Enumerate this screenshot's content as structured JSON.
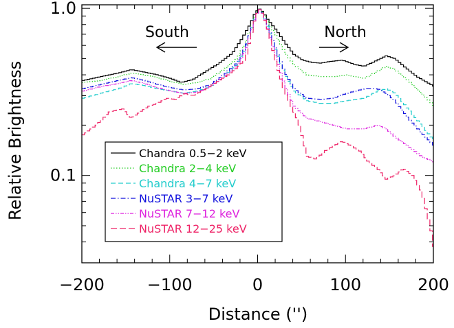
{
  "chart_data": {
    "type": "line",
    "title": "",
    "xlabel": "Distance ('')",
    "ylabel": "Relative Brightness",
    "xlim": [
      -200,
      200
    ],
    "ylim": [
      0.03,
      1.05
    ],
    "yscale": "log",
    "xticks": [
      -200,
      -100,
      0,
      100,
      200
    ],
    "xtick_labels": [
      "−200",
      "−100",
      "0",
      "100",
      "200"
    ],
    "yticks": [
      0.1,
      1.0
    ],
    "ytick_labels": [
      "0.1",
      "1.0"
    ],
    "grid": false,
    "legend_position": "lower-left",
    "annotations": [
      {
        "text": "South",
        "arrow": "left"
      },
      {
        "text": "North",
        "arrow": "right"
      }
    ],
    "series": [
      {
        "name": "Chandra 0.5−2 keV",
        "color": "#000000",
        "style": "solid",
        "x": [
          -200,
          -180,
          -160,
          -145,
          -130,
          -115,
          -100,
          -88,
          -75,
          -60,
          -45,
          -30,
          -20,
          -10,
          -5,
          0,
          5,
          10,
          20,
          30,
          40,
          50,
          60,
          70,
          80,
          95,
          110,
          120,
          135,
          145,
          155,
          165,
          180,
          200
        ],
        "y": [
          0.37,
          0.39,
          0.41,
          0.43,
          0.415,
          0.4,
          0.38,
          0.36,
          0.375,
          0.42,
          0.47,
          0.54,
          0.65,
          0.8,
          0.92,
          1.0,
          0.95,
          0.86,
          0.74,
          0.62,
          0.53,
          0.49,
          0.475,
          0.47,
          0.48,
          0.49,
          0.46,
          0.45,
          0.49,
          0.52,
          0.5,
          0.45,
          0.39,
          0.34
        ]
      },
      {
        "name": "Chandra 2−4 keV",
        "color": "#22cc22",
        "style": "dotted",
        "x": [
          -200,
          -180,
          -160,
          -145,
          -130,
          -115,
          -100,
          -85,
          -70,
          -55,
          -40,
          -25,
          -15,
          -5,
          0,
          5,
          10,
          20,
          30,
          40,
          55,
          70,
          85,
          100,
          120,
          135,
          145,
          155,
          170,
          185,
          200
        ],
        "y": [
          0.36,
          0.37,
          0.39,
          0.41,
          0.4,
          0.385,
          0.365,
          0.35,
          0.36,
          0.38,
          0.43,
          0.5,
          0.62,
          0.88,
          1.0,
          0.94,
          0.83,
          0.68,
          0.54,
          0.46,
          0.4,
          0.39,
          0.39,
          0.4,
          0.38,
          0.42,
          0.45,
          0.43,
          0.37,
          0.31,
          0.26
        ]
      },
      {
        "name": "Chandra 4−7 keV",
        "color": "#22cccc",
        "style": "dashed",
        "x": [
          -200,
          -180,
          -160,
          -145,
          -130,
          -115,
          -100,
          -85,
          -70,
          -55,
          -40,
          -25,
          -15,
          -5,
          0,
          5,
          10,
          20,
          30,
          40,
          55,
          70,
          85,
          100,
          120,
          135,
          145,
          155,
          170,
          185,
          200
        ],
        "y": [
          0.29,
          0.31,
          0.33,
          0.355,
          0.345,
          0.33,
          0.32,
          0.31,
          0.32,
          0.34,
          0.39,
          0.46,
          0.58,
          0.86,
          1.0,
          0.93,
          0.78,
          0.55,
          0.4,
          0.32,
          0.28,
          0.27,
          0.27,
          0.28,
          0.29,
          0.32,
          0.33,
          0.31,
          0.25,
          0.2,
          0.16
        ]
      },
      {
        "name": "NuSTAR 3−7 keV",
        "color": "#1111dd",
        "style": "dashdot",
        "x": [
          -200,
          -180,
          -160,
          -145,
          -130,
          -115,
          -100,
          -85,
          -70,
          -55,
          -40,
          -25,
          -15,
          -5,
          0,
          5,
          10,
          20,
          30,
          40,
          55,
          70,
          85,
          100,
          120,
          135,
          145,
          155,
          170,
          185,
          200
        ],
        "y": [
          0.33,
          0.35,
          0.37,
          0.385,
          0.37,
          0.35,
          0.335,
          0.325,
          0.33,
          0.35,
          0.4,
          0.47,
          0.59,
          0.86,
          1.0,
          0.93,
          0.79,
          0.56,
          0.41,
          0.33,
          0.29,
          0.285,
          0.29,
          0.31,
          0.33,
          0.33,
          0.31,
          0.28,
          0.22,
          0.18,
          0.15
        ]
      },
      {
        "name": "NuSTAR 7−12 keV",
        "color": "#dd22dd",
        "style": "dashdotdot",
        "x": [
          -200,
          -180,
          -160,
          -145,
          -130,
          -115,
          -100,
          -85,
          -70,
          -55,
          -40,
          -25,
          -15,
          -5,
          0,
          5,
          10,
          20,
          30,
          40,
          55,
          70,
          85,
          100,
          120,
          135,
          145,
          155,
          170,
          185,
          200
        ],
        "y": [
          0.32,
          0.34,
          0.355,
          0.37,
          0.355,
          0.335,
          0.32,
          0.31,
          0.315,
          0.34,
          0.39,
          0.45,
          0.56,
          0.84,
          1.0,
          0.92,
          0.76,
          0.5,
          0.34,
          0.26,
          0.22,
          0.21,
          0.2,
          0.19,
          0.19,
          0.2,
          0.19,
          0.17,
          0.15,
          0.13,
          0.12
        ]
      },
      {
        "name": "NuSTAR 12−25 keV",
        "color": "#ee2266",
        "style": "longdash",
        "x": [
          -200,
          -185,
          -170,
          -155,
          -145,
          -135,
          -125,
          -115,
          -105,
          -95,
          -85,
          -75,
          -60,
          -45,
          -35,
          -25,
          -15,
          -5,
          0,
          5,
          10,
          20,
          30,
          45,
          55,
          65,
          75,
          85,
          95,
          105,
          115,
          125,
          135,
          145,
          155,
          165,
          175,
          185,
          195,
          200
        ],
        "y": [
          0.175,
          0.2,
          0.24,
          0.25,
          0.22,
          0.24,
          0.26,
          0.27,
          0.29,
          0.285,
          0.31,
          0.3,
          0.33,
          0.37,
          0.4,
          0.44,
          0.5,
          0.84,
          1.0,
          0.92,
          0.75,
          0.46,
          0.31,
          0.21,
          0.13,
          0.125,
          0.14,
          0.15,
          0.16,
          0.15,
          0.14,
          0.12,
          0.11,
          0.095,
          0.1,
          0.11,
          0.1,
          0.08,
          0.05,
          0.035
        ]
      }
    ]
  }
}
